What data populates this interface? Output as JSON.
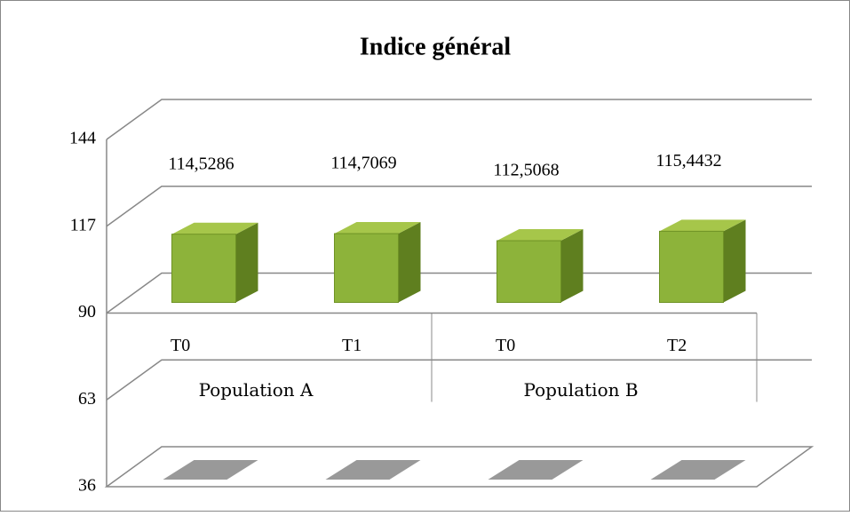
{
  "chart_data": {
    "type": "bar3d",
    "title": "Indice général",
    "categories": [
      "T0",
      "T1",
      "T0",
      "T2"
    ],
    "group_labels": [
      "Population A",
      "Population B"
    ],
    "values": [
      114.5286,
      114.7069,
      112.5068,
      115.4432
    ],
    "value_labels": [
      "114,5286",
      "114,7069",
      "112,5068",
      "115,4432"
    ],
    "color": "#8db33a",
    "ylim": [
      36,
      144
    ],
    "yticks": [
      36,
      63,
      90,
      117,
      144
    ],
    "x_axis_crosses": 90,
    "grid": true
  }
}
